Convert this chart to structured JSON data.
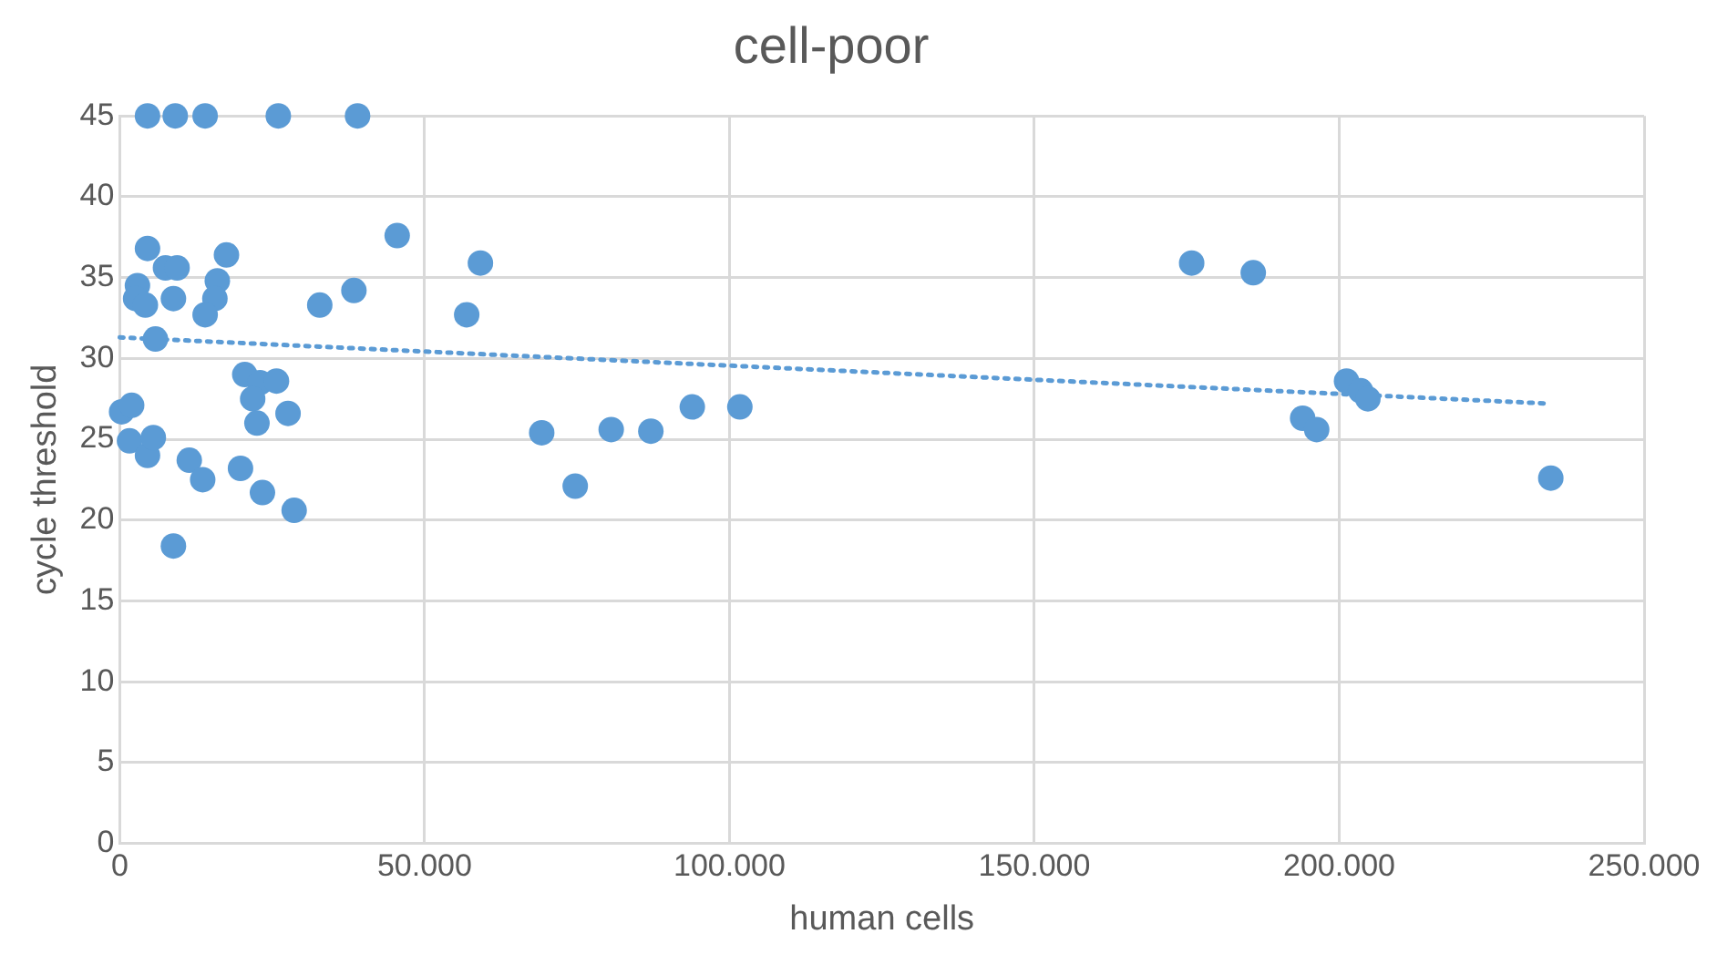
{
  "chart_data": {
    "type": "scatter",
    "title": "cell-poor",
    "xlabel": "human cells",
    "ylabel": "cycle threshold",
    "xlim": [
      0,
      250000
    ],
    "ylim": [
      0,
      45
    ],
    "xticks": [
      0,
      {
        "value": 50000,
        "label": "50.000"
      },
      {
        "value": 100000,
        "label": "100.000"
      },
      {
        "value": 150000,
        "label": "150.000"
      },
      {
        "value": 200000,
        "label": "200.000"
      },
      {
        "value": 250000,
        "label": "250.000"
      }
    ],
    "yticks": [
      0,
      5,
      10,
      15,
      20,
      25,
      30,
      35,
      40,
      45
    ],
    "grid": true,
    "legend": false,
    "marker": "circle",
    "series": [
      {
        "color": "#5b9bd5",
        "x": [
          4550,
          9100,
          14000,
          26000,
          39000,
          45500,
          59150,
          56900,
          32800,
          38400,
          17500,
          4550,
          7500,
          9400,
          2900,
          16000,
          15600,
          8800,
          14000,
          2600,
          4200,
          5850,
          300,
          1950,
          1600,
          4550,
          5500,
          20500,
          23000,
          25700,
          21800,
          22500,
          27600,
          11400,
          13600,
          19800,
          23400,
          28600,
          8800,
          69200,
          74700,
          80600,
          87100,
          93900,
          101700,
          175800,
          185900,
          194000,
          196300,
          201200,
          203500,
          204700,
          234700
        ],
        "values": [
          45,
          45,
          45,
          45,
          45,
          37.6,
          35.9,
          32.7,
          33.3,
          34.2,
          36.4,
          36.8,
          35.6,
          35.6,
          34.5,
          34.8,
          33.7,
          33.7,
          32.7,
          33.7,
          33.3,
          31.2,
          26.7,
          27.1,
          24.9,
          24.0,
          25.1,
          29.0,
          28.5,
          28.6,
          27.5,
          26.0,
          26.6,
          23.7,
          22.5,
          23.2,
          21.7,
          20.6,
          18.4,
          25.4,
          22.1,
          25.6,
          25.5,
          27.0,
          27.0,
          35.9,
          35.3,
          26.3,
          25.6,
          28.6,
          28.0,
          27.5,
          22.6
        ]
      },
      {
        "type": "line",
        "color": "#5b9bd5",
        "line_style": "dotted",
        "marker": "none",
        "x": [
          0,
          234700
        ],
        "values": [
          31.3,
          27.2
        ]
      }
    ]
  }
}
